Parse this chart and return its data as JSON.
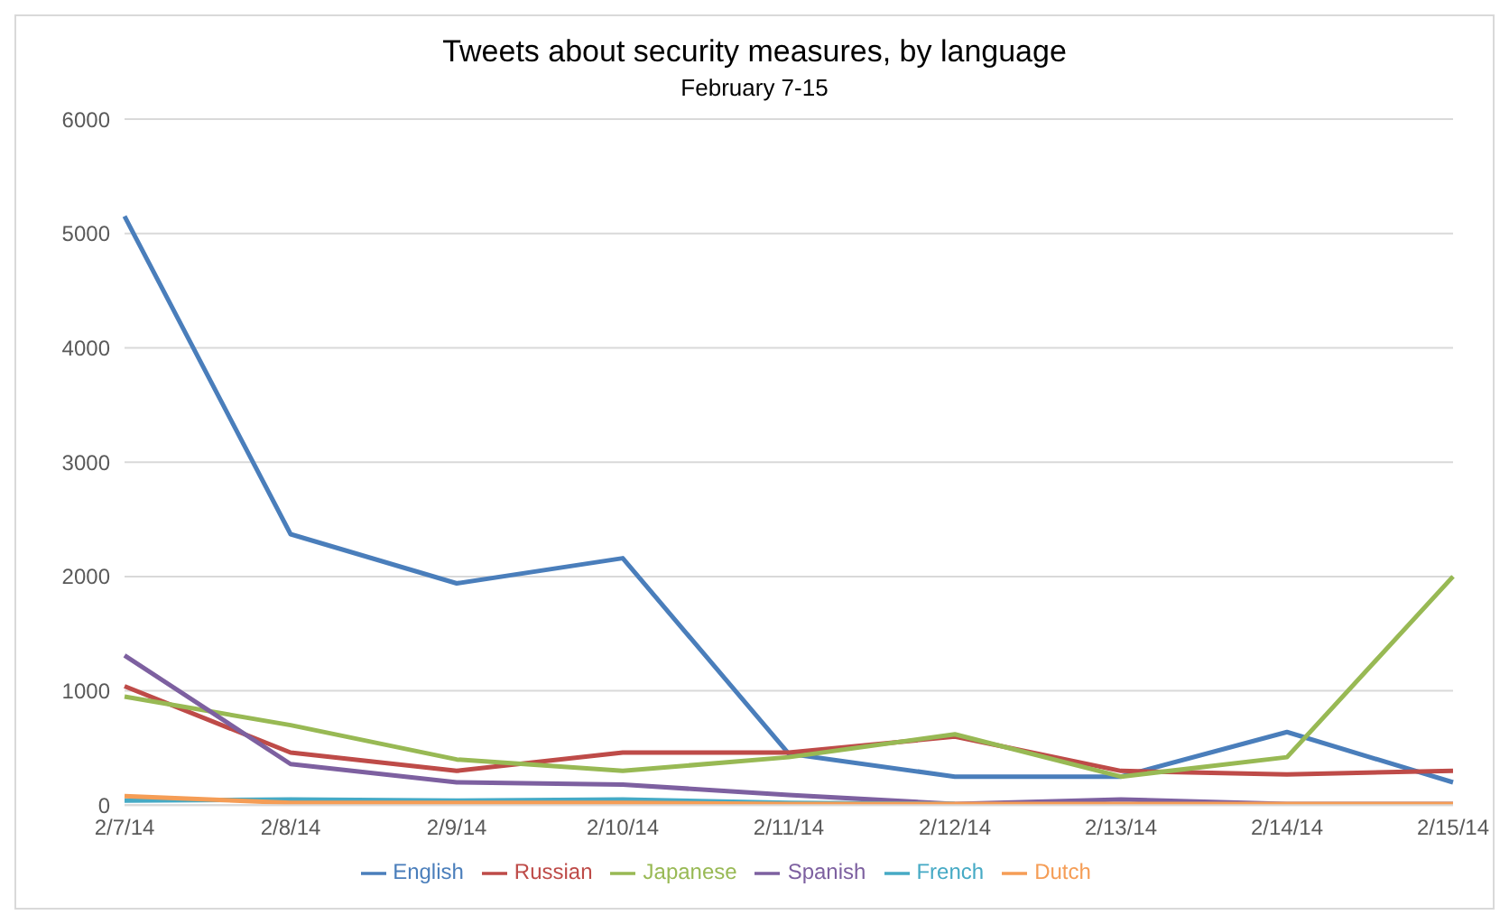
{
  "chart_data": {
    "type": "line",
    "title": "Tweets about security measures, by language",
    "subtitle": "February 7-15",
    "categories": [
      "2/7/14",
      "2/8/14",
      "2/9/14",
      "2/10/14",
      "2/11/14",
      "2/12/14",
      "2/13/14",
      "2/14/14",
      "2/15/14"
    ],
    "series": [
      {
        "name": "English",
        "color": "#4a7ebb",
        "values": [
          5150,
          2370,
          1940,
          2160,
          450,
          250,
          250,
          640,
          200
        ]
      },
      {
        "name": "Russian",
        "color": "#be4b48",
        "values": [
          1040,
          460,
          300,
          460,
          460,
          600,
          300,
          270,
          300
        ]
      },
      {
        "name": "Japanese",
        "color": "#98b954",
        "values": [
          950,
          700,
          400,
          300,
          420,
          620,
          250,
          420,
          2000
        ]
      },
      {
        "name": "Spanish",
        "color": "#7d60a0",
        "values": [
          1310,
          360,
          200,
          180,
          90,
          10,
          50,
          10,
          10
        ]
      },
      {
        "name": "French",
        "color": "#46aac5",
        "values": [
          40,
          50,
          40,
          50,
          20,
          10,
          null,
          null,
          null
        ]
      },
      {
        "name": "Dutch",
        "color": "#f59d56",
        "values": [
          80,
          20,
          20,
          20,
          10,
          10,
          10,
          10,
          10
        ]
      }
    ],
    "ylim": [
      0,
      6000
    ],
    "yticks": [
      0,
      1000,
      2000,
      3000,
      4000,
      5000,
      6000
    ],
    "grid": "y",
    "legend": "bottom",
    "marker": "none",
    "line_style": "solid"
  }
}
